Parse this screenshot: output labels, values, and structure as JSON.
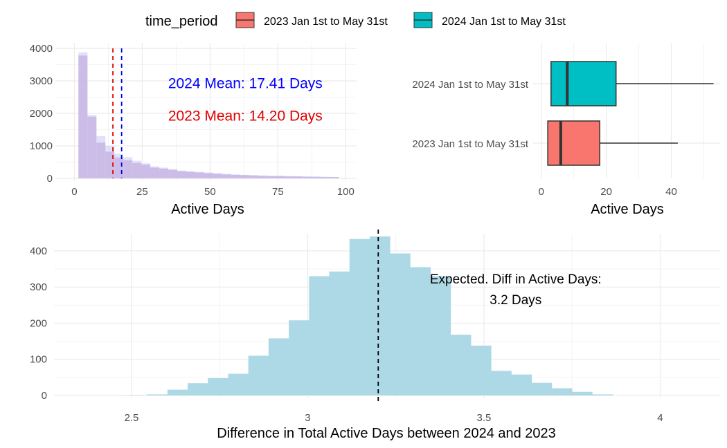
{
  "legend": {
    "title": "time_period",
    "items": [
      {
        "label": "2023 Jan 1st to May 31st",
        "color": "#F8766D"
      },
      {
        "label": "2024 Jan 1st to May 31st",
        "color": "#00BFC4"
      }
    ]
  },
  "chart_data": [
    {
      "type": "histogram",
      "xlabel": "Active Days",
      "ylabel": "",
      "xlim": [
        -7,
        104
      ],
      "ylim": [
        0,
        4000
      ],
      "xticks": [
        0,
        25,
        50,
        75,
        100
      ],
      "yticks": [
        0,
        1000,
        2000,
        3000,
        4000
      ],
      "grid": true,
      "bin_width": 3.31,
      "bin_start": 1.5,
      "series": [
        {
          "color": "#c9a6d6",
          "values": [
            3780,
            1900,
            1100,
            820,
            640,
            560,
            470,
            420,
            330,
            300,
            260,
            220,
            200,
            180,
            160,
            140,
            120,
            110,
            100,
            90,
            80,
            70,
            70,
            60,
            60,
            50,
            50,
            40,
            40
          ]
        },
        {
          "color": "#c8c8f4",
          "values": [
            3880,
            1950,
            1300,
            1000,
            760,
            650,
            540,
            460,
            370,
            330,
            290,
            240,
            220,
            200,
            180,
            160,
            140,
            120,
            110,
            100,
            90,
            80,
            80,
            70,
            60,
            60,
            50,
            50,
            40
          ]
        }
      ],
      "vlines": [
        {
          "x": 14.2,
          "color": "#e00000",
          "style": "dashed"
        },
        {
          "x": 17.41,
          "color": "#0000ee",
          "style": "dashed"
        }
      ],
      "annotations": [
        {
          "text": "2024 Mean: 17.41 Days",
          "color": "#0000ff",
          "x": 63,
          "y": 2950
        },
        {
          "text": "2023 Mean: 14.20 Days",
          "color": "#e00000",
          "x": 63,
          "y": 1950
        }
      ]
    },
    {
      "type": "boxplot",
      "xlabel": "Active Days",
      "xlim": [
        -2.5,
        55
      ],
      "xticks": [
        0,
        20,
        40
      ],
      "grid": true,
      "categories": [
        "2024 Jan 1st to May 31st",
        "2023 Jan 1st to May 31st"
      ],
      "boxes": [
        {
          "category": "2024 Jan 1st to May 31st",
          "min": 3,
          "q1": 3,
          "median": 8,
          "q3": 23,
          "max": 53,
          "color": "#00BFC4"
        },
        {
          "category": "2023 Jan 1st to May 31st",
          "min": 2,
          "q1": 2,
          "median": 6,
          "q3": 18,
          "max": 42,
          "color": "#F8766D"
        }
      ]
    },
    {
      "type": "histogram",
      "xlabel": "Difference in Total Active Days between 2024 and 2023",
      "xlim": [
        2.28,
        4.17
      ],
      "ylim": [
        0,
        440
      ],
      "xticks": [
        2.5,
        3.0,
        3.5,
        4.0
      ],
      "yticks": [
        0,
        100,
        200,
        300,
        400
      ],
      "grid": true,
      "color": "#ADD8E6",
      "bin_width": 0.0574,
      "bin_start": 2.487,
      "values": [
        1,
        3,
        16,
        34,
        48,
        60,
        110,
        158,
        208,
        330,
        343,
        433,
        440,
        393,
        355,
        330,
        168,
        138,
        68,
        58,
        35,
        20,
        10,
        3
      ],
      "vlines": [
        {
          "x": 3.2,
          "color": "#000000",
          "style": "dashed"
        }
      ],
      "annotations": [
        {
          "text": "Expected. Diff in Active Days:",
          "x": 3.59,
          "y": 325
        },
        {
          "text": "3.2 Days",
          "x": 3.59,
          "y": 268
        }
      ]
    }
  ]
}
